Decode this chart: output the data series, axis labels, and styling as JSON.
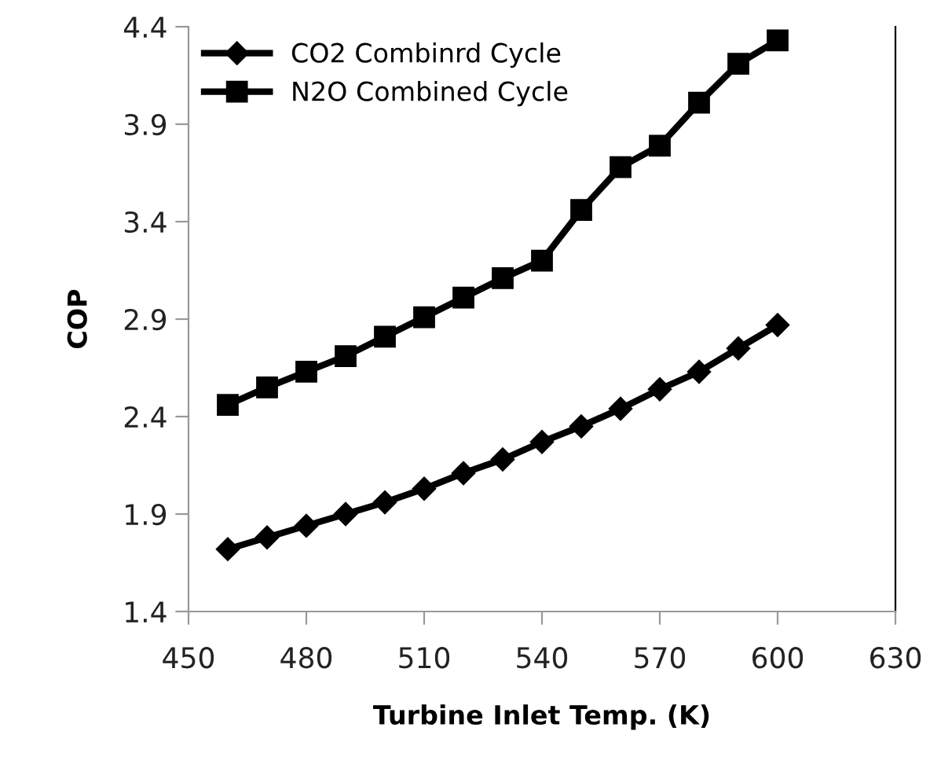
{
  "chart_data": {
    "type": "line",
    "xlabel": "Turbine Inlet Temp. (K)",
    "ylabel": "COP",
    "x": [
      460,
      470,
      480,
      490,
      500,
      510,
      520,
      530,
      540,
      550,
      560,
      570,
      580,
      590,
      600
    ],
    "series": [
      {
        "name": "CO2 Combinrd Cycle",
        "color": "#000000",
        "marker": "diamond",
        "values": [
          1.72,
          1.78,
          1.84,
          1.9,
          1.96,
          2.03,
          2.11,
          2.18,
          2.27,
          2.35,
          2.44,
          2.54,
          2.63,
          2.75,
          2.87
        ]
      },
      {
        "name": "N2O Combined Cycle",
        "color": "#000000",
        "marker": "square",
        "values": [
          2.46,
          2.55,
          2.63,
          2.71,
          2.81,
          2.91,
          3.01,
          3.11,
          3.2,
          3.46,
          3.68,
          3.79,
          4.01,
          4.21,
          4.33
        ]
      }
    ],
    "xlim": [
      450,
      630
    ],
    "xticks": [
      450,
      480,
      510,
      540,
      570,
      600,
      630
    ],
    "ylim": [
      1.4,
      4.4
    ],
    "yticks": [
      1.4,
      1.9,
      2.4,
      2.9,
      3.4,
      3.9,
      4.4
    ],
    "grid": false,
    "legend": "top left",
    "line_style": "solid"
  }
}
